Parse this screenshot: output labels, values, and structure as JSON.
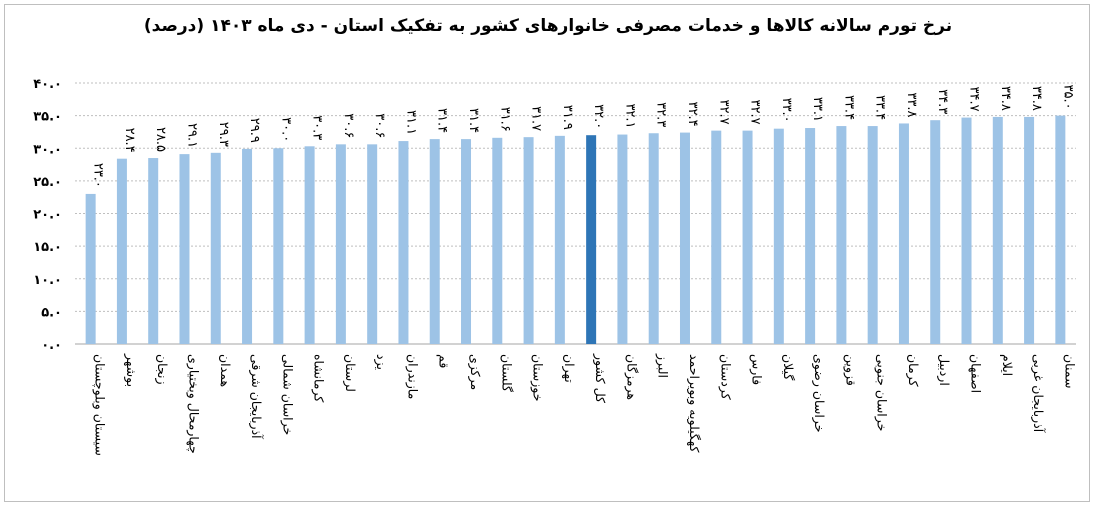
{
  "chart_data": {
    "type": "bar",
    "title": "نرخ تورم سالانه کالاها و خدمات مصرفی خانوارهای کشور به تفکیک استان - دی ماه ۱۴۰۳ (درصد)",
    "xlabel": "",
    "ylabel": "",
    "ylim": [
      0,
      40
    ],
    "yticks": [
      0,
      5,
      10,
      15,
      20,
      25,
      30,
      35,
      40
    ],
    "ytick_labels": [
      "۰.۰",
      "۵.۰",
      "۱۰.۰",
      "۱۵.۰",
      "۲۰.۰",
      "۲۵.۰",
      "۳۰.۰",
      "۳۵.۰",
      "۴۰.۰"
    ],
    "grid": true,
    "legend": "none",
    "bar_color": "#9dc3e6",
    "highlight_color": "#2e75b6",
    "highlight_index": 16,
    "categories": [
      "سیستان وبلوچستان",
      "بوشهر",
      "زنجان",
      "چهارمحال وبختیاری",
      "همدان",
      "آذربایجان شرقی",
      "خراسان شمالی",
      "کرمانشاه",
      "لرستان",
      "یزد",
      "مازندران",
      "قم",
      "مرکزی",
      "گلستان",
      "خوزستان",
      "تهران",
      "کل کشور",
      "هرمزگان",
      "البرز",
      "کهگیلویه وبویراحمد",
      "کردستان",
      "فارس",
      "گیلان",
      "خراسان رضوی",
      "قزوین",
      "خراسان جنوبی",
      "کرمان",
      "اردبیل",
      "اصفهان",
      "ایلام",
      "آذربایجان غربی",
      "سمنان"
    ],
    "values": [
      23.0,
      28.4,
      28.5,
      29.1,
      29.3,
      29.9,
      30.0,
      30.3,
      30.6,
      30.6,
      31.1,
      31.4,
      31.4,
      31.6,
      31.7,
      31.9,
      32.0,
      32.1,
      32.3,
      32.4,
      32.7,
      32.7,
      33.0,
      33.1,
      33.4,
      33.4,
      33.8,
      34.3,
      34.7,
      34.8,
      34.8,
      35.0
    ],
    "value_labels": [
      "۲۳.۰",
      "۲۸.۴",
      "۲۸.۵",
      "۲۹.۱",
      "۲۹.۳",
      "۲۹.۹",
      "۳۰.۰",
      "۳۰.۳",
      "۳۰.۶",
      "۳۰.۶",
      "۳۱.۱",
      "۳۱.۴",
      "۳۱.۴",
      "۳۱.۶",
      "۳۱.۷",
      "۳۱.۹",
      "۳۲.۰",
      "۳۲.۱",
      "۳۲.۳",
      "۳۲.۴",
      "۳۲.۷",
      "۳۲.۷",
      "۳۳.۰",
      "۳۳.۱",
      "۳۳.۴",
      "۳۳.۴",
      "۳۳.۸",
      "۳۴.۳",
      "۳۴.۷",
      "۳۴.۸",
      "۳۴.۸",
      "۳۵.۰"
    ]
  }
}
